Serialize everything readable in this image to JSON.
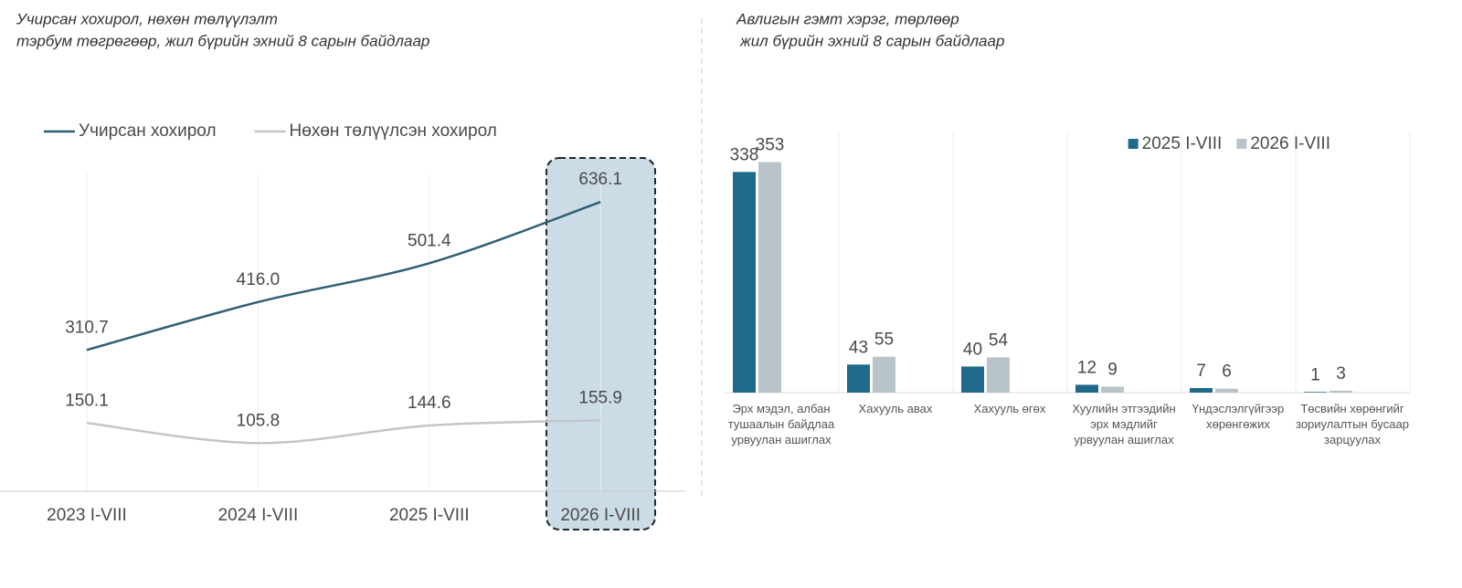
{
  "chart_data": [
    {
      "type": "line",
      "title": "Учирсан хохирол, нөхөн төлүүлэлт",
      "subtitle": "тэрбум төгрөгөөр, жил бүрийн эхний 8 сарын байдлаар",
      "categories": [
        "2023 I-VIII",
        "2024 I-VIII",
        "2025 I-VIII",
        "2026 I-VIII"
      ],
      "series": [
        {
          "name": "Учирсан хохирол",
          "color": "#2e5f74",
          "values": [
            310.7,
            416.0,
            501.4,
            636.1
          ],
          "value_labels": [
            "310.7",
            "416.0",
            "501.4",
            "636.1"
          ]
        },
        {
          "name": "Нөхөн төлүүлсэн хохирол",
          "color": "#c3c6c8",
          "values": [
            150.1,
            105.8,
            144.6,
            155.9
          ]
        }
      ],
      "legend": "top-left"
    },
    {
      "type": "bar",
      "title": "Авлигын гэмт хэрэг, төрлөөр",
      "subtitle": "жил бүрийн эхний 8 сарын байдлаар",
      "categories": [
        "Эрх мэдэл, албан тушаалын байдлаа урвуулан ашиглах",
        "Хахууль авах",
        "Хахууль өгөх",
        "Хуулийн этгээдийн эрх мэдлийг урвуулан ашиглах",
        "Үндэслэлгүйгээр хөрөнгөжих",
        "Төсвийн хөрөнгийг зориулалтын бусаар зарцуулах"
      ],
      "series": [
        {
          "name": "2025 I-VIII",
          "color": "#1f6a8a",
          "values": [
            338,
            43,
            40,
            12,
            7,
            1
          ]
        },
        {
          "name": "2026 I-VIII",
          "color": "#b9c3ca",
          "values": [
            353,
            55,
            54,
            9,
            6,
            3
          ]
        }
      ],
      "legend": "top-right"
    }
  ]
}
